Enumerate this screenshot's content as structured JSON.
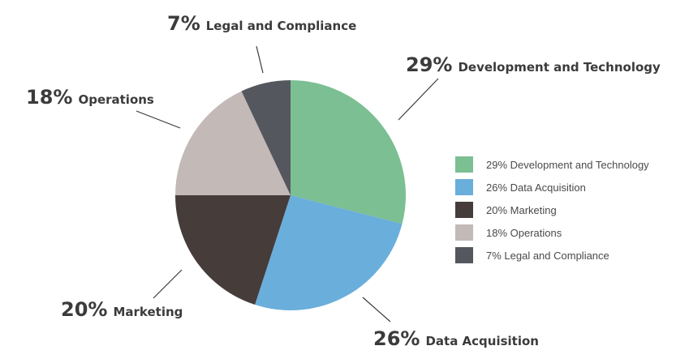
{
  "chart_data": {
    "type": "pie",
    "title": "",
    "slices": [
      {
        "key": "dev",
        "percent_label": "29%",
        "name": "Development and Technology",
        "legend_label": "29% Development and Technology",
        "value": 29,
        "color": "#7bbf93"
      },
      {
        "key": "data",
        "percent_label": "26%",
        "name": "Data Acquisition",
        "legend_label": "26% Data Acquisition",
        "value": 26,
        "color": "#6aaedb"
      },
      {
        "key": "marketing",
        "percent_label": "20%",
        "name": "Marketing",
        "legend_label": "20% Marketing",
        "value": 20,
        "color": "#463c39"
      },
      {
        "key": "ops",
        "percent_label": "18%",
        "name": "Operations",
        "legend_label": "18% Operations",
        "value": 18,
        "color": "#c3b9b7"
      },
      {
        "key": "legal",
        "percent_label": "7%",
        "name": "Legal and Compliance",
        "legend_label": "7% Legal and Compliance",
        "value": 7,
        "color": "#55575e"
      }
    ],
    "legend_position": "right",
    "start_angle": "12 o'clock",
    "direction": "clockwise"
  }
}
